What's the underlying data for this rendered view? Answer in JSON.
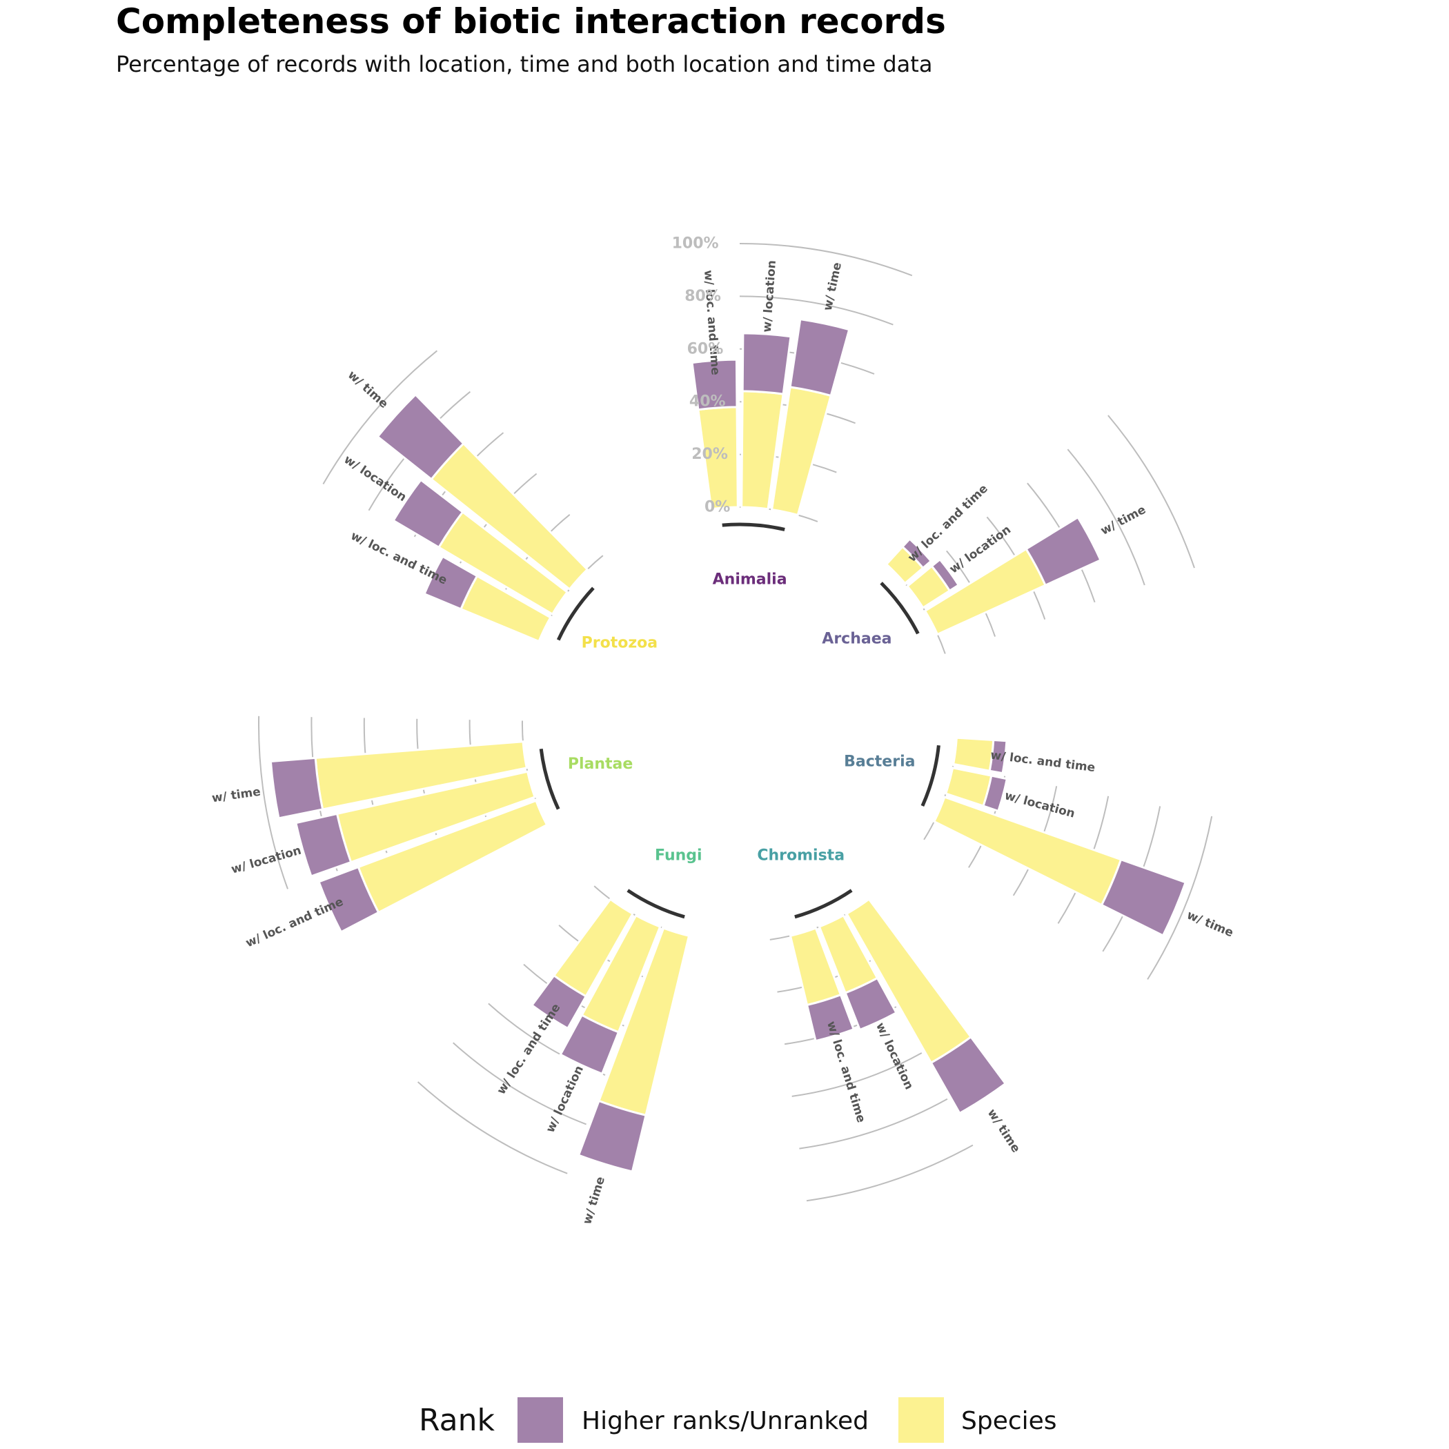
{
  "chart_data": {
    "type": "circular-stacked-bar",
    "title": "Completeness of biotic interaction records",
    "subtitle": "Percentage of records with location, time and both location and time data",
    "y_ticks": [
      "0%",
      "20%",
      "40%",
      "60%",
      "80%",
      "100%"
    ],
    "ylim": [
      0,
      100
    ],
    "series": [
      {
        "name": "Higher ranks/Unranked",
        "color": "#a282aa"
      },
      {
        "name": "Species",
        "color": "#fcf291"
      }
    ],
    "groups": [
      {
        "name": "Animalia",
        "color": "#6b2d7a",
        "bars": [
          {
            "label": "w/ loc. and time",
            "species": 38,
            "higher": 18
          },
          {
            "label": "w/ location",
            "species": 44,
            "higher": 22
          },
          {
            "label": "w/ time",
            "species": 47,
            "higher": 26
          }
        ]
      },
      {
        "name": "Archaea",
        "color": "#6a6295",
        "bars": [
          {
            "label": "w/ loc. and time",
            "species": 9,
            "higher": 4
          },
          {
            "label": "w/ location",
            "species": 12,
            "higher": 4
          },
          {
            "label": "w/ time",
            "species": 45,
            "higher": 23
          }
        ]
      },
      {
        "name": "Bacteria",
        "color": "#587e96",
        "bars": [
          {
            "label": "w/ loc. and time",
            "species": 14,
            "higher": 5
          },
          {
            "label": "w/ location",
            "species": 15,
            "higher": 6
          },
          {
            "label": "w/ time",
            "species": 71,
            "higher": 26
          }
        ]
      },
      {
        "name": "Chromista",
        "color": "#48a0a4",
        "bars": [
          {
            "label": "w/ time",
            "species": 65,
            "higher": 22
          },
          {
            "label": "w/ location",
            "species": 27,
            "higher": 15
          },
          {
            "label": "w/ loc. and time",
            "species": 27,
            "higher": 14
          }
        ]
      },
      {
        "name": "Fungi",
        "color": "#5ac38f",
        "bars": [
          {
            "label": "w/ time",
            "species": 70,
            "higher": 22
          },
          {
            "label": "w/ location",
            "species": 43,
            "higher": 17
          },
          {
            "label": "w/ loc. and time",
            "species": 36,
            "higher": 14
          }
        ]
      },
      {
        "name": "Plantae",
        "color": "#a8dc62",
        "bars": [
          {
            "label": "w/ loc. and time",
            "species": 72,
            "higher": 16
          },
          {
            "label": "w/ location",
            "species": 74,
            "higher": 16
          },
          {
            "label": "w/ time",
            "species": 79,
            "higher": 17
          }
        ]
      },
      {
        "name": "Protozoa",
        "color": "#f3e04a",
        "bars": [
          {
            "label": "w/ loc. and time",
            "species": 32,
            "higher": 15
          },
          {
            "label": "w/ location",
            "species": 50,
            "higher": 20
          },
          {
            "label": "w/ time",
            "species": 67,
            "higher": 26
          }
        ]
      }
    ]
  },
  "legend": {
    "title": "Rank",
    "items": [
      {
        "label": "Higher ranks/Unranked",
        "color": "#a282aa"
      },
      {
        "label": "Species",
        "color": "#fcf291"
      }
    ]
  }
}
